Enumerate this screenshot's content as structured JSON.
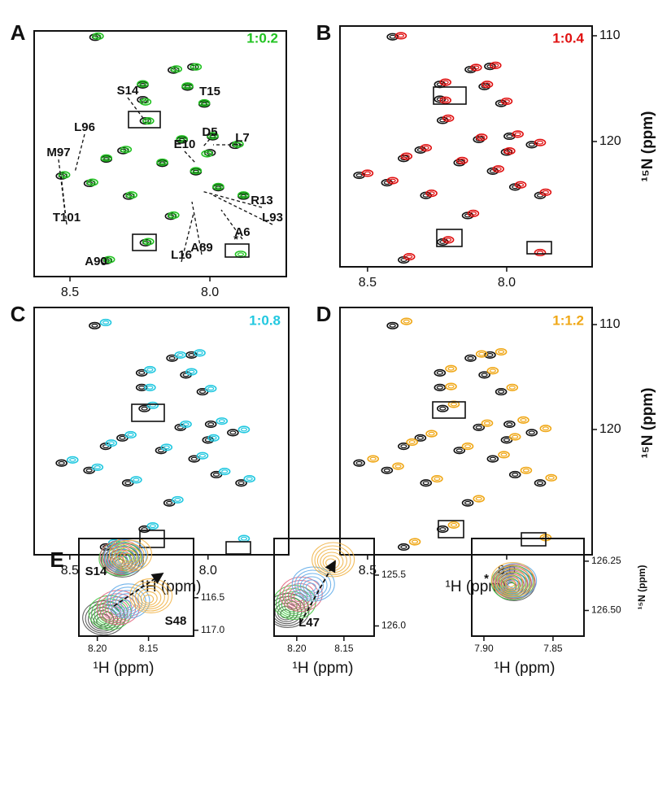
{
  "chart_data": [
    {
      "type": "scatter",
      "panel": "A",
      "xlim": [
        8.628,
        7.727
      ],
      "ylim": [
        109.5,
        132.7
      ],
      "xticks": [
        8.5,
        {
          "value": 8,
          "label": "8.0"
        }
      ],
      "annotations": [
        "S14",
        "T15",
        "L96",
        "D5",
        "E10",
        "L7",
        "M97",
        "R13",
        "L93",
        "A6",
        "T101",
        "A89",
        "L16",
        "A90",
        "*"
      ],
      "series": [
        {
          "color": "#111111",
          "x": [
            8.41,
            8.24,
            8.13,
            8.06,
            8.08,
            8.24,
            8.02,
            8.23,
            7.99,
            7.91,
            8.31,
            8.37,
            8.17,
            8.05,
            7.97,
            8.43,
            8.29,
            8.23,
            8.37,
            8.53,
            7.88,
            8.14,
            8.0,
            8.1
          ],
          "values": [
            110.1,
            114.6,
            113.2,
            112.9,
            114.8,
            116.0,
            116.4,
            118.0,
            119.5,
            120.3,
            120.8,
            121.6,
            122.0,
            122.8,
            124.3,
            123.9,
            125.1,
            129.5,
            131.2,
            123.2,
            125.1,
            127.0,
            121.0,
            119.8
          ]
        },
        {
          "name": "1:0.2",
          "color": "#22c322",
          "x": [
            8.4,
            8.24,
            8.12,
            8.05,
            8.08,
            8.23,
            8.02,
            8.22,
            7.99,
            7.9,
            8.3,
            8.37,
            8.17,
            8.05,
            7.97,
            8.42,
            8.28,
            8.22,
            8.36,
            8.52,
            7.88,
            8.13,
            8.01,
            8.1,
            7.89
          ],
          "values": [
            110.0,
            114.5,
            113.1,
            112.9,
            114.7,
            116.2,
            116.3,
            118.0,
            119.4,
            120.2,
            120.7,
            121.5,
            121.9,
            122.7,
            124.2,
            123.8,
            125.0,
            129.4,
            131.1,
            123.1,
            125.0,
            126.9,
            121.1,
            119.7,
            130.6
          ]
        }
      ]
    },
    {
      "type": "scatter",
      "panel": "B",
      "xlim": [
        8.599,
        7.693
      ],
      "ylim": [
        109.08,
        131.85
      ],
      "xticks": [
        8.5,
        {
          "value": 8,
          "label": "8.0"
        }
      ],
      "yticks": [
        110,
        120
      ],
      "ylabel": "¹⁵N (ppm)",
      "series": [
        {
          "color": "#111111",
          "x": [
            8.41,
            8.24,
            8.13,
            8.06,
            8.08,
            8.24,
            8.02,
            8.23,
            7.99,
            7.91,
            8.31,
            8.37,
            8.17,
            8.05,
            7.97,
            8.43,
            8.29,
            8.23,
            8.37,
            8.53,
            7.88,
            8.14,
            8.0,
            8.1
          ],
          "values": [
            110.1,
            114.6,
            113.2,
            112.9,
            114.8,
            116.0,
            116.4,
            118.0,
            119.5,
            120.3,
            120.8,
            121.6,
            122.0,
            122.8,
            124.3,
            123.9,
            125.1,
            129.5,
            131.2,
            123.2,
            125.1,
            127.0,
            121.0,
            119.8
          ]
        },
        {
          "name": "1:0.4",
          "color": "#e01010",
          "x": [
            8.38,
            8.22,
            8.11,
            8.04,
            8.07,
            8.22,
            8.0,
            8.21,
            7.96,
            7.88,
            8.29,
            8.36,
            8.16,
            8.03,
            7.95,
            8.41,
            8.27,
            8.21,
            8.35,
            8.5,
            7.86,
            8.12,
            7.99,
            8.09,
            7.88
          ],
          "values": [
            110.0,
            114.4,
            113.0,
            112.8,
            114.6,
            116.1,
            116.2,
            117.8,
            119.3,
            120.1,
            120.6,
            121.4,
            121.8,
            122.6,
            124.1,
            123.7,
            124.9,
            129.3,
            130.9,
            123.0,
            124.8,
            126.8,
            120.9,
            119.6,
            130.5
          ]
        }
      ]
    },
    {
      "type": "scatter",
      "panel": "C",
      "xlim": [
        8.629,
        7.708
      ],
      "ylim": [
        108.37,
        131.94
      ],
      "xticks": [
        8.5,
        {
          "value": 8,
          "label": "8.0"
        }
      ],
      "xlabel": "¹H (ppm)",
      "series": [
        {
          "color": "#111111",
          "x": [
            8.41,
            8.24,
            8.13,
            8.06,
            8.08,
            8.24,
            8.02,
            8.23,
            7.99,
            7.91,
            8.31,
            8.37,
            8.17,
            8.05,
            7.97,
            8.43,
            8.29,
            8.23,
            8.37,
            8.53,
            7.88,
            8.14,
            8.0,
            8.1
          ],
          "values": [
            110.1,
            114.6,
            113.2,
            112.9,
            114.8,
            116.0,
            116.4,
            118.0,
            119.5,
            120.3,
            120.8,
            121.6,
            122.0,
            122.8,
            124.3,
            123.9,
            125.1,
            129.5,
            131.2,
            123.2,
            125.1,
            127.0,
            121.0,
            119.8
          ]
        },
        {
          "name": "1:0.8",
          "color": "#22c8e0",
          "x": [
            8.37,
            8.21,
            8.1,
            8.03,
            8.06,
            8.21,
            7.99,
            8.2,
            7.95,
            7.87,
            8.28,
            8.35,
            8.15,
            8.02,
            7.94,
            8.4,
            8.26,
            8.2,
            8.34,
            8.49,
            7.85,
            8.11,
            7.98,
            8.08,
            7.87
          ],
          "values": [
            109.8,
            114.3,
            112.9,
            112.7,
            114.5,
            116.0,
            116.1,
            117.7,
            119.2,
            120.0,
            120.5,
            121.3,
            121.7,
            122.5,
            124.0,
            123.6,
            124.8,
            129.2,
            130.8,
            122.9,
            124.7,
            126.7,
            120.8,
            119.5,
            130.4
          ]
        }
      ]
    },
    {
      "type": "scatter",
      "panel": "D",
      "xlim": [
        8.599,
        7.693
      ],
      "ylim": [
        108.37,
        131.94
      ],
      "xticks": [
        8.5,
        {
          "value": 8,
          "label": "8.0"
        }
      ],
      "yticks": [
        110,
        120
      ],
      "xlabel": "¹H (ppm)",
      "ylabel": "¹⁵N (ppm)",
      "series": [
        {
          "color": "#111111",
          "x": [
            8.41,
            8.24,
            8.13,
            8.06,
            8.08,
            8.24,
            8.02,
            8.23,
            7.99,
            7.91,
            8.31,
            8.37,
            8.17,
            8.05,
            7.97,
            8.43,
            8.29,
            8.23,
            8.37,
            8.53,
            7.88,
            8.14,
            8.0,
            8.1
          ],
          "values": [
            110.1,
            114.6,
            113.2,
            112.9,
            114.8,
            116.0,
            116.4,
            118.0,
            119.5,
            120.3,
            120.8,
            121.6,
            122.0,
            122.8,
            124.3,
            123.9,
            125.1,
            129.5,
            131.2,
            123.2,
            125.1,
            127.0,
            121.0,
            119.8
          ]
        },
        {
          "name": "1:1.2",
          "color": "#f0a818",
          "x": [
            8.36,
            8.2,
            8.09,
            8.02,
            8.05,
            8.2,
            7.98,
            8.19,
            7.94,
            7.86,
            8.27,
            8.34,
            8.14,
            8.01,
            7.93,
            8.39,
            8.25,
            8.19,
            8.33,
            8.48,
            7.84,
            8.1,
            7.97,
            8.07,
            7.86
          ],
          "values": [
            109.7,
            114.2,
            112.8,
            112.6,
            114.4,
            115.9,
            116.0,
            117.6,
            119.1,
            119.9,
            120.4,
            121.2,
            121.6,
            122.4,
            123.9,
            123.5,
            124.7,
            129.1,
            130.7,
            122.8,
            124.6,
            126.6,
            120.7,
            119.4,
            130.3
          ]
        }
      ]
    },
    {
      "type": "contour",
      "panel": "E",
      "xlim": [
        8.218,
        8.106
      ],
      "ylim": [
        115.59,
        117.09
      ],
      "xticks": [
        {
          "value": 8.2,
          "label": "8.20"
        },
        8.15
      ],
      "yticks": [
        116.5,
        {
          "value": 117,
          "label": "117.0"
        }
      ],
      "xlabel": "¹H (ppm)",
      "annotations": [
        "S14",
        "S48"
      ],
      "series": [
        {
          "color": "#444444",
          "x": [
            8.178,
            8.196
          ],
          "values": [
            115.97,
            116.86
          ]
        },
        {
          "color": "#3cc43c",
          "x": [
            8.18,
            8.19
          ],
          "values": [
            115.95,
            116.78
          ]
        },
        {
          "color": "#e0607a",
          "x": [
            8.179,
            8.182
          ],
          "values": [
            115.93,
            116.7
          ]
        },
        {
          "color": "#5aa8e8",
          "x": [
            8.175,
            8.172
          ],
          "values": [
            115.92,
            116.6
          ]
        },
        {
          "color": "#f0b040",
          "x": [
            8.17,
            8.15
          ],
          "values": [
            115.88,
            116.52
          ]
        }
      ]
    },
    {
      "type": "contour",
      "xlim": [
        8.224,
        8.118
      ],
      "ylim": [
        125.14,
        126.1
      ],
      "xticks": [
        {
          "value": 8.2,
          "label": "8.20"
        },
        8.15
      ],
      "yticks": [
        125.5,
        {
          "value": 126,
          "label": "126.0"
        }
      ],
      "xlabel": "¹H (ppm)",
      "annotations": [
        "L47"
      ],
      "series": [
        {
          "color": "#444444",
          "x": [
            8.212
          ],
          "values": [
            125.88
          ]
        },
        {
          "color": "#3cc43c",
          "x": [
            8.205
          ],
          "values": [
            125.8
          ]
        },
        {
          "color": "#e0607a",
          "x": [
            8.198
          ],
          "values": [
            125.72
          ]
        },
        {
          "color": "#5aa8e8",
          "x": [
            8.185
          ],
          "values": [
            125.62
          ]
        },
        {
          "color": "#f0b040",
          "x": [
            8.164
          ],
          "values": [
            125.38
          ]
        }
      ]
    },
    {
      "type": "contour",
      "xlim": [
        7.9088,
        7.8276
      ],
      "ylim": [
        126.135,
        126.63
      ],
      "xticks": [
        {
          "value": 7.9,
          "label": "7.90"
        },
        7.85
      ],
      "yticks": [
        126.25,
        {
          "value": 126.5,
          "label": "126.50"
        }
      ],
      "xlabel": "¹H (ppm)",
      "ylabel": "¹⁵N (ppm)",
      "annotations": [
        "*"
      ],
      "series": [
        {
          "color": "#444444",
          "x": [
            7.88
          ],
          "values": [
            126.38
          ]
        },
        {
          "color": "#3cc43c",
          "x": [
            7.881
          ],
          "values": [
            126.375
          ]
        },
        {
          "color": "#e0607a",
          "x": [
            7.88
          ],
          "values": [
            126.37
          ]
        },
        {
          "color": "#5aa8e8",
          "x": [
            7.879
          ],
          "values": [
            126.365
          ]
        },
        {
          "color": "#f0b040",
          "x": [
            7.881
          ],
          "values": [
            126.36
          ]
        }
      ]
    }
  ]
}
